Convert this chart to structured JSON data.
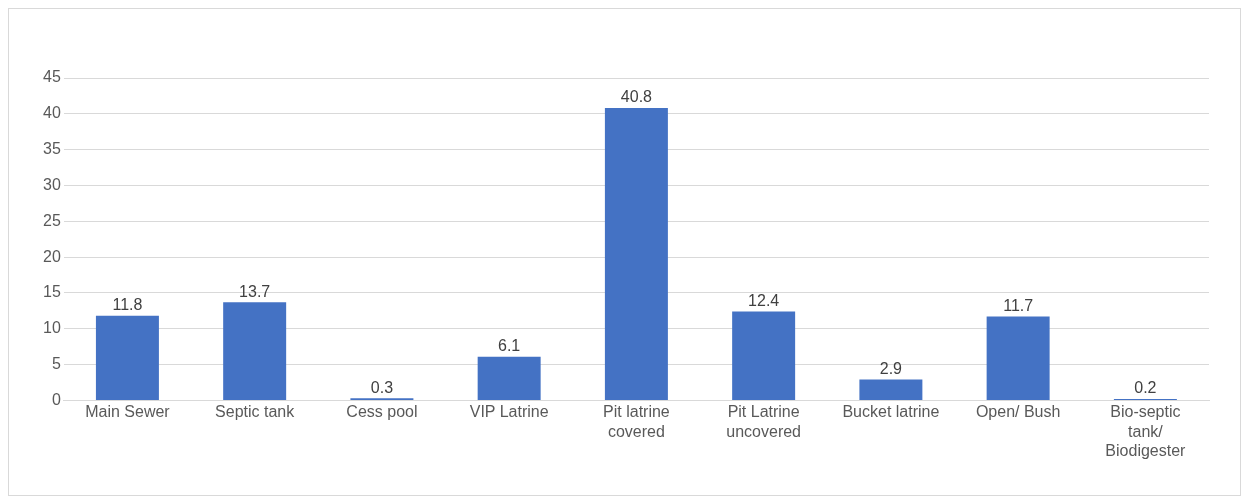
{
  "chart_data": {
    "type": "bar",
    "categories": [
      "Main Sewer",
      "Septic tank",
      "Cess pool",
      "VIP Latrine",
      "Pit latrine covered",
      "Pit Latrine uncovered",
      "Bucket latrine",
      "Open/ Bush",
      "Bio-septic tank/ Biodigester"
    ],
    "values": [
      11.8,
      13.7,
      0.3,
      6.1,
      40.8,
      12.4,
      2.9,
      11.7,
      0.2
    ],
    "color": "#4472c4",
    "ylim": [
      0,
      45
    ],
    "yticks": [
      0,
      5,
      10,
      15,
      20,
      25,
      30,
      35,
      40,
      45
    ],
    "grid": "y",
    "data_labels": true
  }
}
